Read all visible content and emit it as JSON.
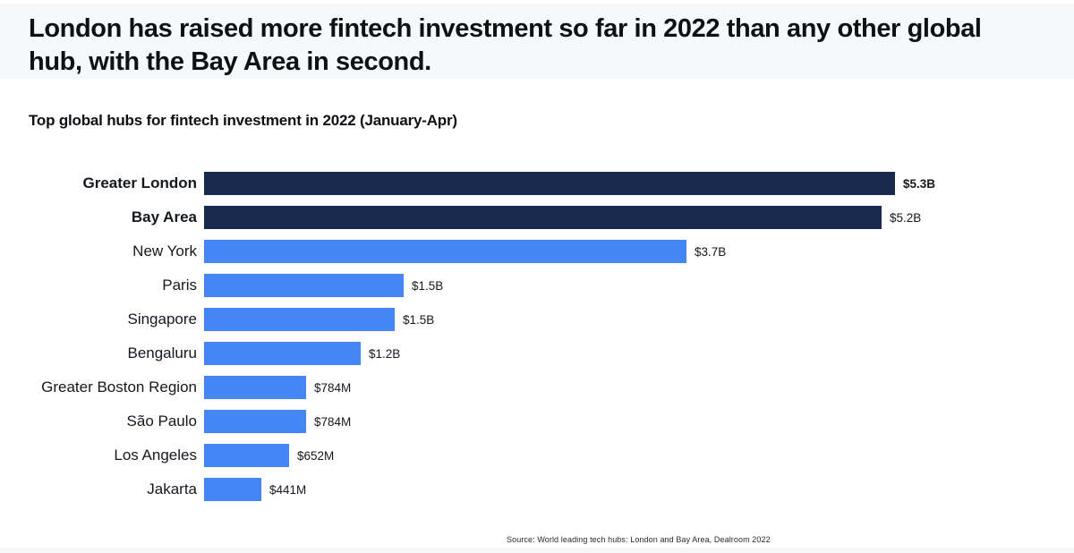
{
  "page": {
    "title_lines": [
      "London has raised more fintech investment so far in 2022 than any other global",
      "hub, with the Bay Area in second."
    ],
    "subtitle": "Top global hubs for fintech investment in 2022 (January-Apr)",
    "source": "Source: World leading tech hubs: London and Bay Area, Dealroom 2022"
  },
  "colors": {
    "bar_primary": "#4486F4",
    "bar_emphasis": "#182A4E",
    "band_bg": "#F7F8FA",
    "text": "#111111"
  },
  "chart_data": {
    "type": "bar",
    "orientation": "horizontal",
    "title": "Top global hubs for fintech investment in 2022 (January-Apr)",
    "xlabel": "",
    "ylabel": "",
    "unit": "USD",
    "axis_max_usd_millions": 5300,
    "grid": false,
    "legend": false,
    "categories": [
      "Greater London",
      "Bay Area",
      "New York",
      "Paris",
      "Singapore",
      "Bengaluru",
      "Greater Boston Region",
      "São Paulo",
      "Los Angeles",
      "Jakarta"
    ],
    "values_usd_millions": [
      5300,
      5200,
      3700,
      1530,
      1460,
      1200,
      784,
      784,
      652,
      441
    ],
    "value_labels": [
      "$5.3B",
      "$5.2B",
      "$3.7B",
      "$1.5B",
      "$1.5B",
      "$1.2B",
      "$784M",
      "$784M",
      "$652M",
      "$441M"
    ],
    "highlighted": [
      true,
      true,
      false,
      false,
      false,
      false,
      false,
      false,
      false,
      false
    ],
    "label_bold": [
      true,
      true,
      false,
      false,
      false,
      false,
      false,
      false,
      false,
      false
    ],
    "value_bold": [
      true,
      false,
      false,
      false,
      false,
      false,
      false,
      false,
      false,
      false
    ]
  }
}
